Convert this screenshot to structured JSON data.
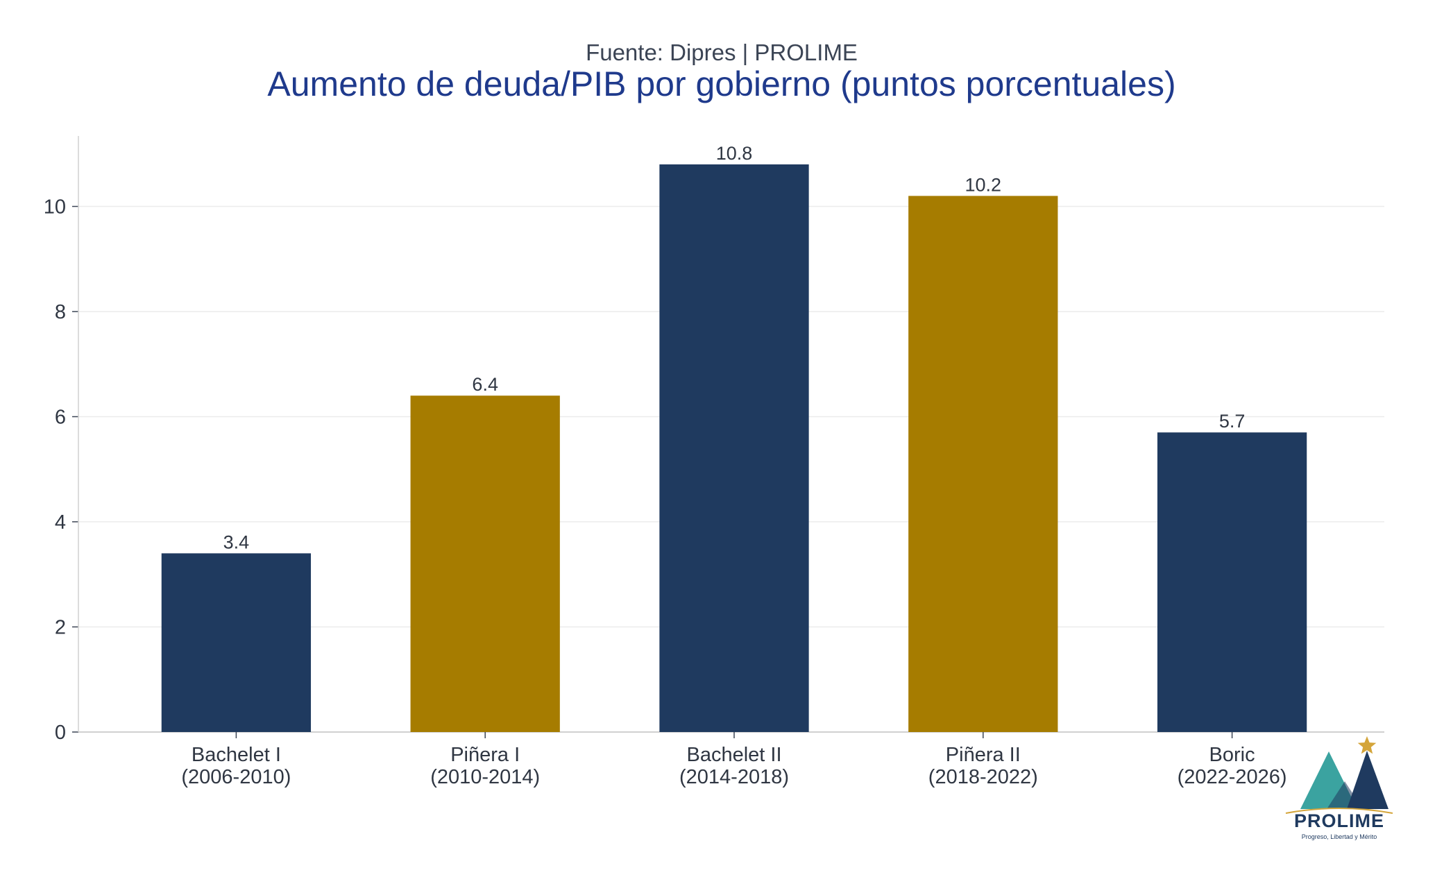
{
  "header": {
    "subtitle": "Fuente: Dipres | PROLIME",
    "title": "Aumento de deuda/PIB por gobierno (puntos porcentuales)"
  },
  "chart_data": {
    "type": "bar",
    "title": "Aumento de deuda/PIB por gobierno (puntos porcentuales)",
    "subtitle": "Fuente: Dipres | PROLIME",
    "categories": [
      [
        "Bachelet I",
        "(2006-2010)"
      ],
      [
        "Piñera I",
        "(2010-2014)"
      ],
      [
        "Bachelet II",
        "(2014-2018)"
      ],
      [
        "Piñera II",
        "(2018-2022)"
      ],
      [
        "Boric",
        "(2022-2026)"
      ]
    ],
    "values": [
      3.4,
      6.4,
      10.8,
      10.2,
      5.7
    ],
    "value_labels": [
      "3.4",
      "6.4",
      "10.8",
      "10.2",
      "5.7"
    ],
    "bar_colors": [
      "#1f3a5f",
      "#a67c00",
      "#1f3a5f",
      "#a67c00",
      "#1f3a5f"
    ],
    "yticks": [
      0,
      2,
      4,
      6,
      8,
      10
    ],
    "ylim": [
      0,
      11.34
    ],
    "xlabel": "",
    "ylabel": "",
    "grid": "horizontal"
  },
  "logo": {
    "name": "PROLIME",
    "tagline": "Progreso, Libertad y Mérito",
    "colors": {
      "teal": "#3ba3a0",
      "navy": "#1f3a5f",
      "gold": "#d4a53a"
    }
  }
}
